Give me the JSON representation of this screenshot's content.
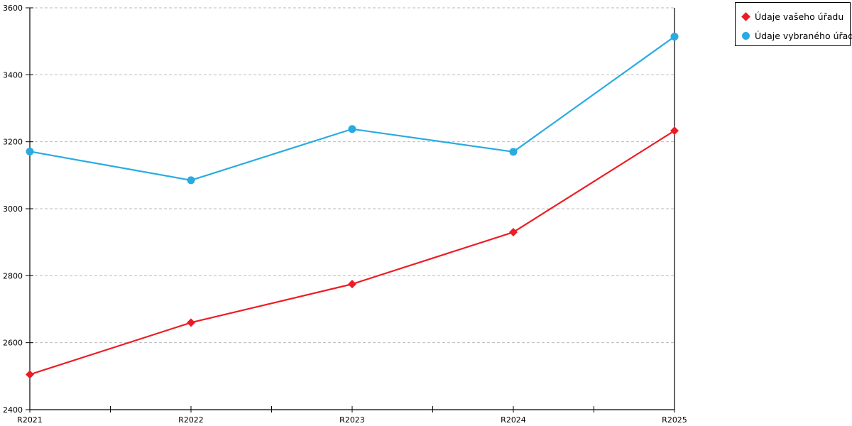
{
  "legend": {
    "items": [
      {
        "label": "Údaje vašeho úřadu",
        "marker": "diamond",
        "color": "#ed1c24"
      },
      {
        "label": "Údaje vybraného úřadu",
        "marker": "circle",
        "color": "#29abe2"
      }
    ]
  },
  "chart_data": {
    "type": "line",
    "title": "",
    "xlabel": "",
    "ylabel": "",
    "categories": [
      "R2021",
      "R2022",
      "R2023",
      "R2024",
      "R2025"
    ],
    "series": [
      {
        "name": "Údaje vašeho úřadu",
        "color": "#ed1c24",
        "marker": "diamond",
        "values": [
          2505,
          2660,
          2775,
          2930,
          3233
        ]
      },
      {
        "name": "Údaje vybraného úřadu",
        "color": "#29abe2",
        "marker": "circle",
        "values": [
          3171,
          3085,
          3238,
          3170,
          3514
        ]
      }
    ],
    "ylim": [
      2400,
      3600
    ],
    "yticks": [
      2400,
      2600,
      2800,
      3000,
      3200,
      3400,
      3600
    ],
    "grid": "horizontal-dashed",
    "minor_x_ticks_between_categories": true,
    "legend_position": "top-right-outside"
  }
}
